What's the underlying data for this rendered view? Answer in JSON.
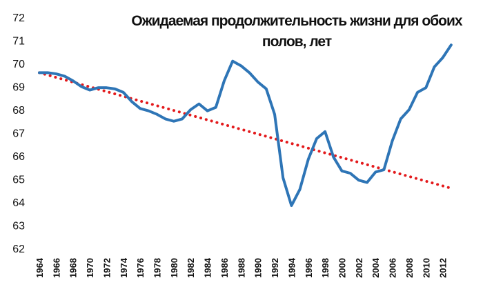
{
  "chart_data": {
    "type": "line",
    "title_line1": "Ожидаемая продолжительность жизни для обоих",
    "title_line2": "полов, лет",
    "xlabel": "",
    "ylabel": "",
    "ylim": [
      62,
      72
    ],
    "yticks": [
      62,
      63,
      64,
      65,
      66,
      67,
      68,
      69,
      70,
      71,
      72
    ],
    "xlim": [
      1964,
      2014
    ],
    "xticks": [
      1964,
      1966,
      1968,
      1970,
      1972,
      1974,
      1976,
      1978,
      1980,
      1982,
      1984,
      1986,
      1988,
      1990,
      1992,
      1994,
      1996,
      1998,
      2000,
      2002,
      2004,
      2006,
      2008,
      2010,
      2012
    ],
    "grid": false,
    "legend": "none",
    "series": [
      {
        "style": "solid",
        "color": "#2E75B6",
        "points": [
          [
            1964,
            69.6
          ],
          [
            1965,
            69.6
          ],
          [
            1966,
            69.55
          ],
          [
            1967,
            69.45
          ],
          [
            1968,
            69.25
          ],
          [
            1969,
            69.0
          ],
          [
            1970,
            68.85
          ],
          [
            1971,
            68.95
          ],
          [
            1972,
            68.95
          ],
          [
            1973,
            68.9
          ],
          [
            1974,
            68.75
          ],
          [
            1975,
            68.35
          ],
          [
            1976,
            68.05
          ],
          [
            1977,
            67.95
          ],
          [
            1978,
            67.8
          ],
          [
            1979,
            67.6
          ],
          [
            1980,
            67.5
          ],
          [
            1981,
            67.6
          ],
          [
            1982,
            68.0
          ],
          [
            1983,
            68.25
          ],
          [
            1984,
            67.95
          ],
          [
            1985,
            68.1
          ],
          [
            1986,
            69.25
          ],
          [
            1987,
            70.1
          ],
          [
            1988,
            69.9
          ],
          [
            1989,
            69.6
          ],
          [
            1990,
            69.2
          ],
          [
            1991,
            68.9
          ],
          [
            1992,
            67.8
          ],
          [
            1993,
            65.05
          ],
          [
            1994,
            63.85
          ],
          [
            1995,
            64.55
          ],
          [
            1996,
            65.85
          ],
          [
            1997,
            66.75
          ],
          [
            1998,
            67.05
          ],
          [
            1999,
            65.95
          ],
          [
            2000,
            65.35
          ],
          [
            2001,
            65.25
          ],
          [
            2002,
            64.95
          ],
          [
            2003,
            64.85
          ],
          [
            2004,
            65.3
          ],
          [
            2005,
            65.4
          ],
          [
            2006,
            66.65
          ],
          [
            2007,
            67.6
          ],
          [
            2008,
            68.0
          ],
          [
            2009,
            68.75
          ],
          [
            2010,
            68.95
          ],
          [
            2011,
            69.85
          ],
          [
            2012,
            70.25
          ],
          [
            2013,
            70.8
          ]
        ]
      },
      {
        "style": "dotted",
        "color": "#E31A1C",
        "points": [
          [
            1964,
            69.6
          ],
          [
            2013,
            64.6
          ]
        ]
      }
    ]
  }
}
